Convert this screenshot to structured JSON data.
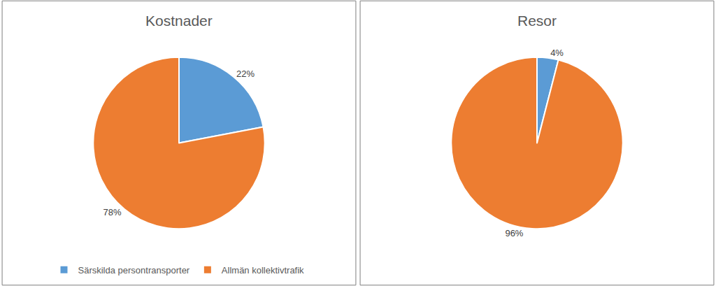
{
  "chart_data": [
    {
      "type": "pie",
      "title": "Kostnader",
      "categories": [
        "Särskilda persontransporter",
        "Allmän kollektivtrafik"
      ],
      "values": [
        22,
        78
      ],
      "value_labels": [
        "22%",
        "78%"
      ],
      "colors": [
        "#5b9bd5",
        "#ed7d31"
      ],
      "data_labels": true,
      "legend": "bottom"
    },
    {
      "type": "pie",
      "title": "Resor",
      "categories": [
        "Särskilda persontransporter",
        "Allmän kollektivtrafik"
      ],
      "values": [
        4,
        96
      ],
      "value_labels": [
        "4%",
        "96%"
      ],
      "colors": [
        "#5b9bd5",
        "#ed7d31"
      ],
      "data_labels": true,
      "legend": "bottom"
    }
  ]
}
